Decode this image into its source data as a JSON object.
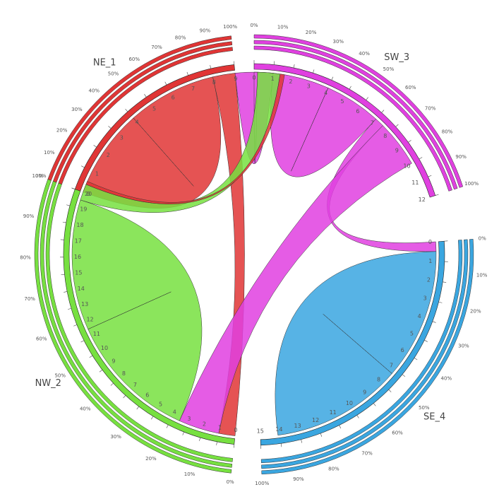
{
  "chart_data": {
    "type": "chord",
    "title": "",
    "sectors": [
      {
        "name": "NE_1",
        "color": "#e03535",
        "max": 9,
        "ticks": [
          "0",
          "1",
          "2",
          "3",
          "4",
          "5",
          "6",
          "7",
          "8",
          "9"
        ]
      },
      {
        "name": "SW_3",
        "color": "#e040e0",
        "max": 12,
        "ticks": [
          "0",
          "1",
          "2",
          "3",
          "4",
          "5",
          "6",
          "7",
          "8",
          "9",
          "10",
          "11",
          "12"
        ]
      },
      {
        "name": "SE_4",
        "color": "#3aa6e0",
        "max": 15,
        "ticks": [
          "0",
          "1",
          "2",
          "3",
          "4",
          "5",
          "6",
          "7",
          "8",
          "9",
          "10",
          "11",
          "12",
          "13",
          "14",
          "15"
        ]
      },
      {
        "name": "NW_2",
        "color": "#77e040",
        "max": 20,
        "ticks": [
          "0",
          "1",
          "2",
          "3",
          "4",
          "5",
          "6",
          "7",
          "8",
          "9",
          "10",
          "11",
          "12",
          "13",
          "14",
          "15",
          "16",
          "17",
          "18",
          "19",
          "20"
        ]
      }
    ],
    "percent_ticks": [
      "0%",
      "10%",
      "20%",
      "30%",
      "40%",
      "50%",
      "60%",
      "70%",
      "80%",
      "90%",
      "100%"
    ],
    "flows": [
      {
        "from": "NE_1",
        "to": "NE_1",
        "value": 4
      },
      {
        "from": "NE_1",
        "to": "NW_2",
        "value": 1
      },
      {
        "from": "SW_3",
        "to": "NE_1",
        "value": 1
      },
      {
        "from": "SW_3",
        "to": "SW_3",
        "value": 3
      },
      {
        "from": "SW_3",
        "to": "SE_4",
        "value": 0.5
      },
      {
        "from": "SW_3",
        "to": "NW_2",
        "value": 2.5
      },
      {
        "from": "SE_4",
        "to": "SE_4",
        "value": 6.8
      },
      {
        "from": "NW_2",
        "to": "NW_2",
        "value": 8
      },
      {
        "from": "NW_2",
        "to": "NE_1",
        "value": 1
      },
      {
        "from": "NE_1",
        "to": "NW_2",
        "value": 0.2
      }
    ]
  }
}
